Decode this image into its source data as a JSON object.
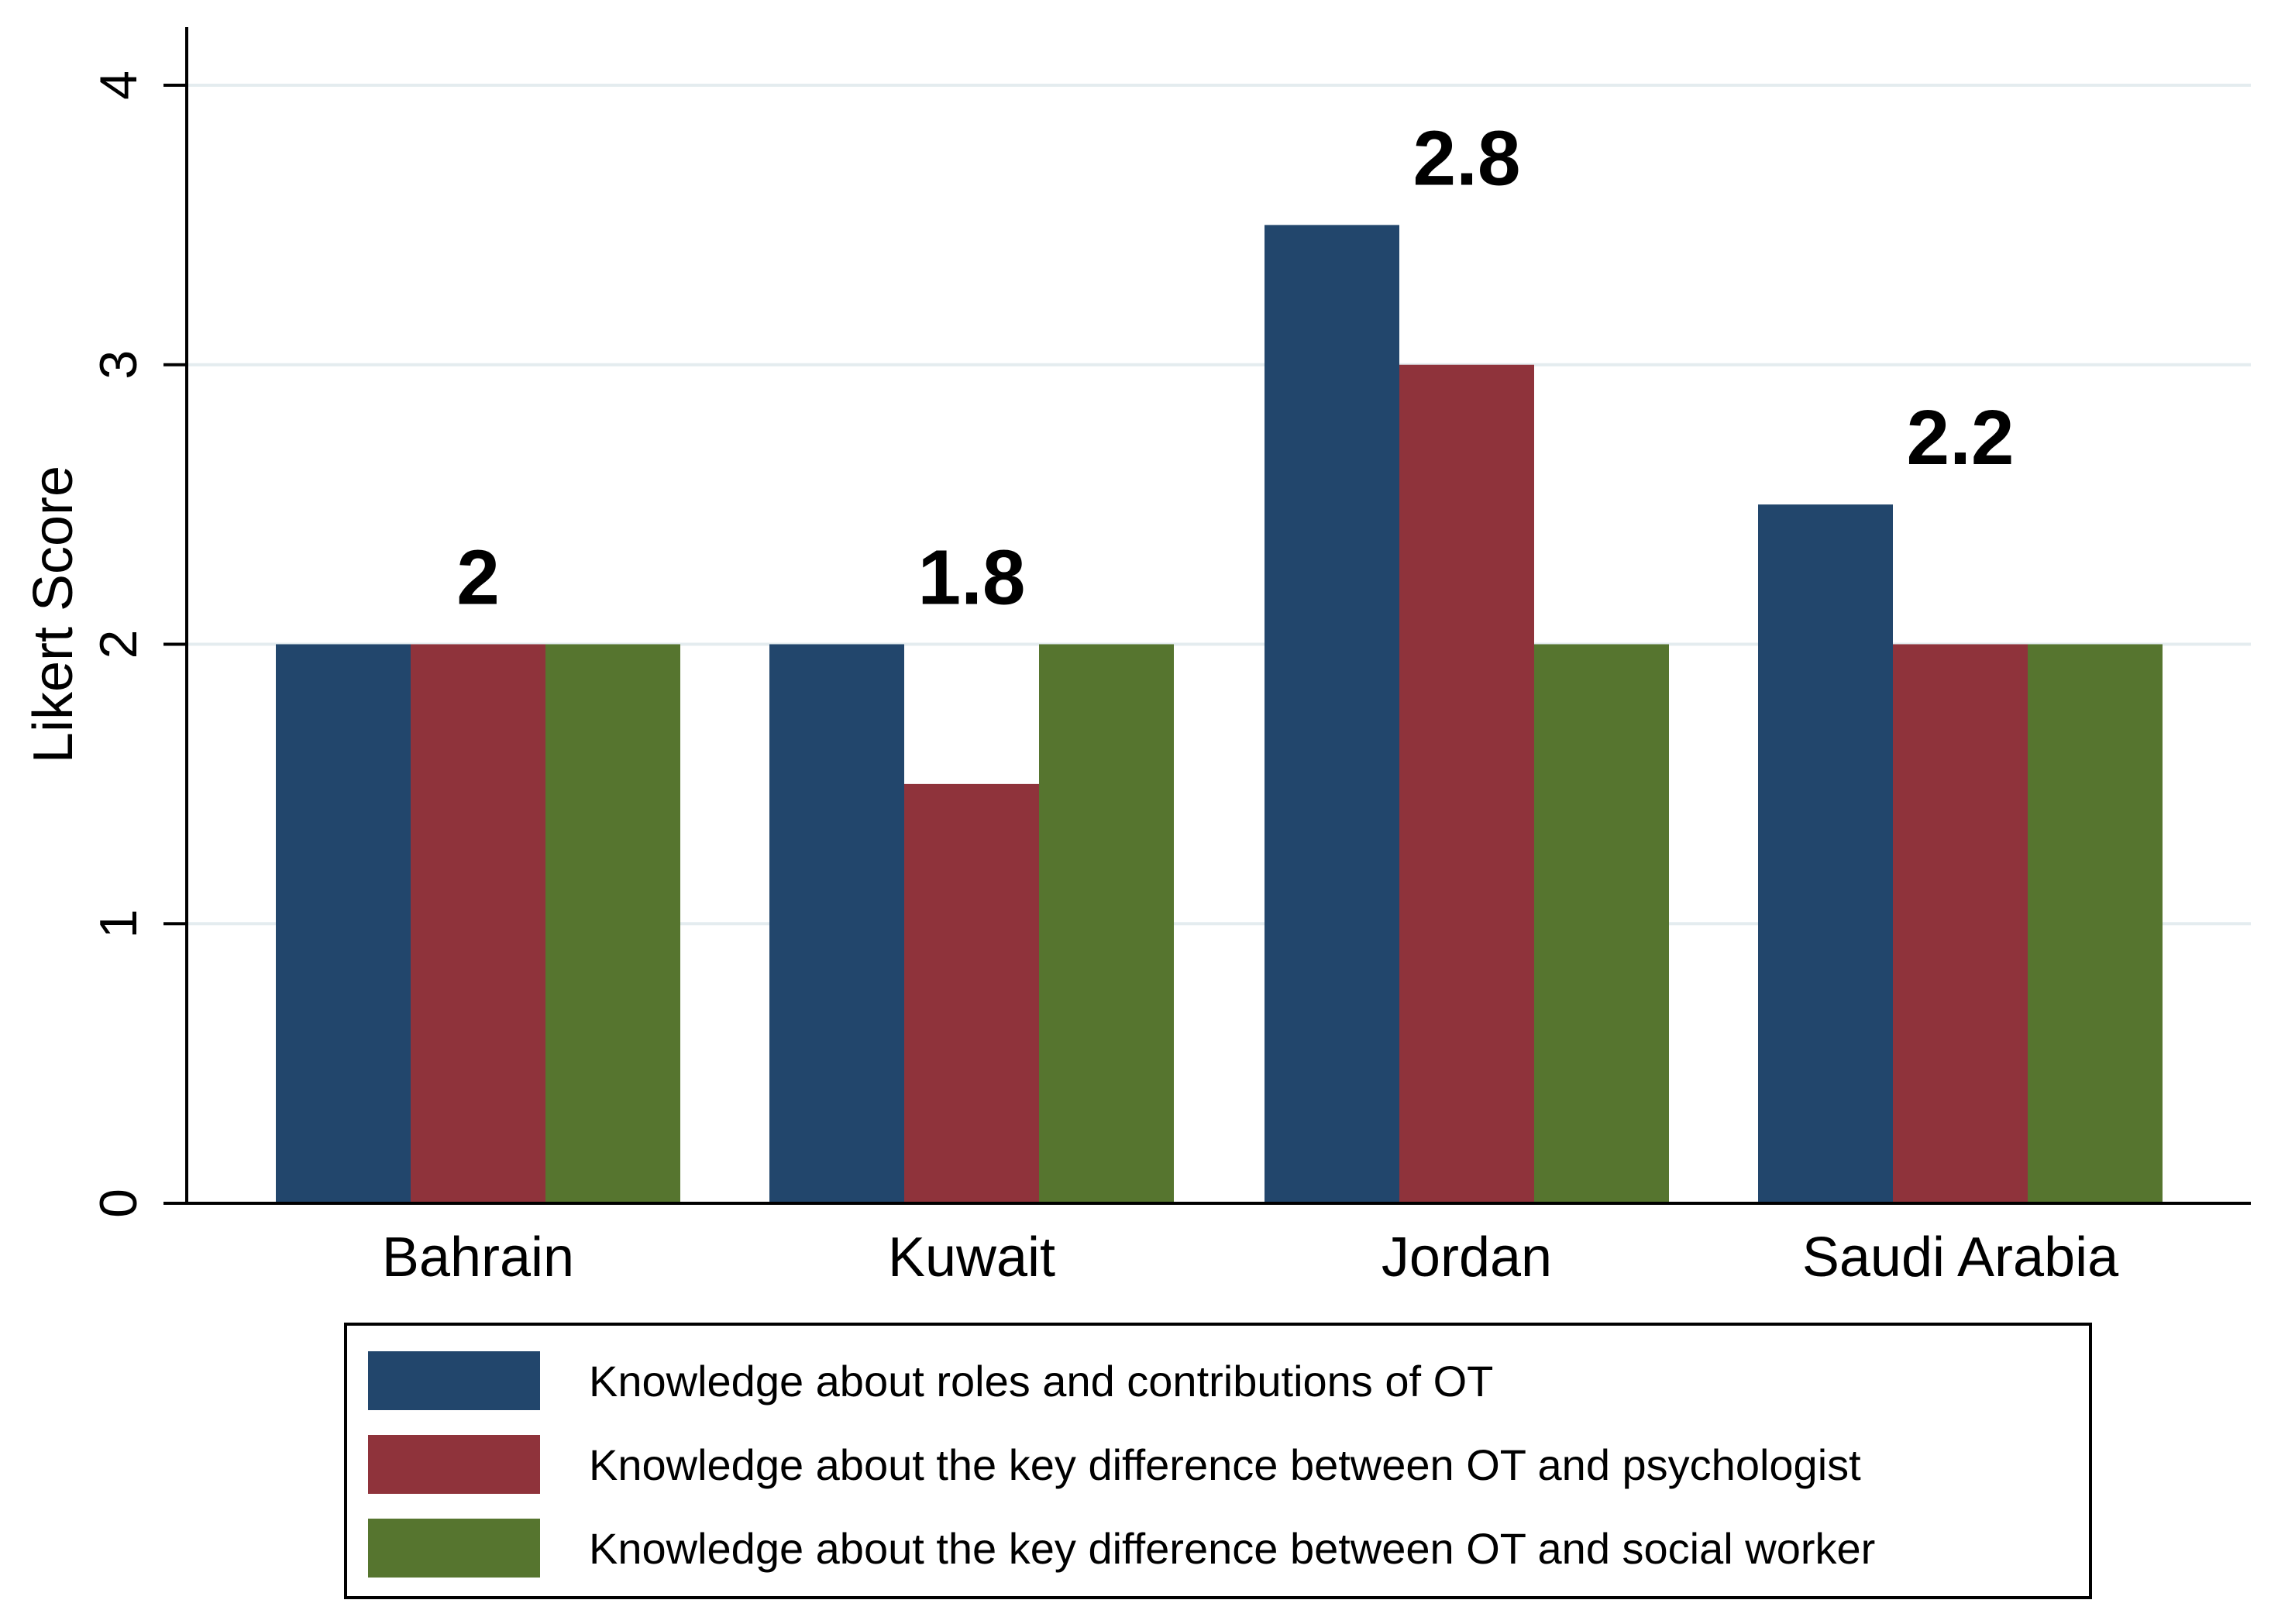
{
  "chart_data": {
    "type": "bar",
    "title": "",
    "xlabel": "",
    "ylabel": "Likert Score",
    "ylim": [
      0,
      4
    ],
    "yticks": [
      0,
      1,
      2,
      3,
      4
    ],
    "grid": true,
    "legend_position": "bottom",
    "categories": [
      "Bahrain",
      "Kuwait",
      "Jordan",
      "Saudi Arabia"
    ],
    "group_labels": [
      "2",
      "1.8",
      "2.8",
      "2.2"
    ],
    "series": [
      {
        "name": "Knowledge about roles and contributions of OT",
        "color": "#22466c",
        "values": [
          2,
          2,
          3.5,
          2.5
        ]
      },
      {
        "name": "Knowledge about the key difference between OT and psychologist",
        "color": "#8f333b",
        "values": [
          2,
          1.5,
          3,
          2
        ]
      },
      {
        "name": "Knowledge about the key difference between OT and social worker",
        "color": "#56752f",
        "values": [
          2,
          2,
          2,
          2
        ]
      }
    ],
    "colors": {
      "grid": "#e4ecef",
      "axis": "#000000"
    }
  }
}
